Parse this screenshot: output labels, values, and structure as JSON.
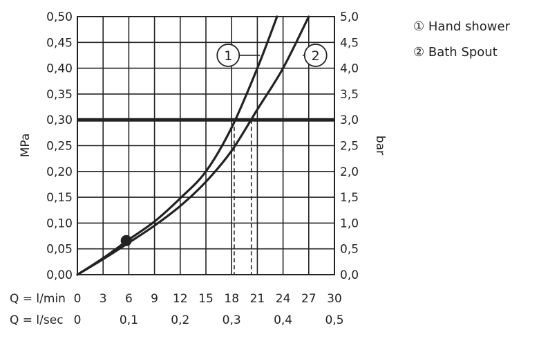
{
  "chart_data": {
    "type": "line",
    "xlabel_rows": [
      {
        "label": "Q = l/min",
        "ticks": [
          "0",
          "3",
          "6",
          "9",
          "12",
          "15",
          "18",
          "21",
          "24",
          "27",
          "30"
        ],
        "positions": [
          0,
          3,
          6,
          9,
          12,
          15,
          18,
          21,
          24,
          27,
          30
        ]
      },
      {
        "label": "Q = l/sec",
        "ticks": [
          "0",
          "0,1",
          "0,2",
          "0,3",
          "0,4",
          "0,5"
        ],
        "positions": [
          0,
          6,
          12,
          18,
          24,
          30
        ]
      }
    ],
    "ylabel_left": "MPa",
    "ylabel_right": "bar",
    "xlim": [
      0,
      30
    ],
    "ylim": [
      0,
      0.5
    ],
    "y_ticks_left": [
      "0,00",
      "0,05",
      "0,10",
      "0,15",
      "0,20",
      "0,25",
      "0,30",
      "0,35",
      "0,40",
      "0,45",
      "0,50"
    ],
    "y_ticks_right": [
      "0,0",
      "0,5",
      "1,0",
      "1,5",
      "2,0",
      "2,5",
      "3,0",
      "3,5",
      "4,0",
      "4,5",
      "5,0"
    ],
    "y_tick_values": [
      0,
      0.05,
      0.1,
      0.15,
      0.2,
      0.25,
      0.3,
      0.35,
      0.4,
      0.45,
      0.5
    ],
    "grid": true,
    "reference_line": {
      "y": 0.3
    },
    "series": [
      {
        "name": "1",
        "x": [
          0,
          3,
          6,
          9,
          12,
          15,
          18,
          21,
          23.3
        ],
        "y": [
          0,
          0.032,
          0.068,
          0.103,
          0.148,
          0.2,
          0.285,
          0.4,
          0.5
        ]
      },
      {
        "name": "2",
        "x": [
          0,
          3,
          6,
          9,
          12,
          15,
          18,
          21,
          24,
          27
        ],
        "y": [
          0,
          0.03,
          0.062,
          0.095,
          0.133,
          0.18,
          0.24,
          0.32,
          0.4,
          0.5
        ]
      }
    ],
    "marker_point": {
      "x": 5.7,
      "y": 0.066
    },
    "dashed_drops": [
      {
        "x": 18.3,
        "y": 0.3
      },
      {
        "x": 20.3,
        "y": 0.3
      }
    ],
    "curve_labels": [
      {
        "text": "1",
        "x": 17.6,
        "y": 0.425,
        "leader_to": {
          "x": 21.3,
          "y": 0.425
        }
      },
      {
        "text": "2",
        "x": 27.8,
        "y": 0.425,
        "leader_to": {
          "x": 26.3,
          "y": 0.425
        }
      }
    ]
  },
  "legend": {
    "items": [
      {
        "symbol": "①",
        "label": "Hand shower"
      },
      {
        "symbol": "②",
        "label": "Bath Spout"
      }
    ]
  },
  "colors": {
    "ink": "#222222",
    "grid": "#222222",
    "background": "#ffffff"
  }
}
